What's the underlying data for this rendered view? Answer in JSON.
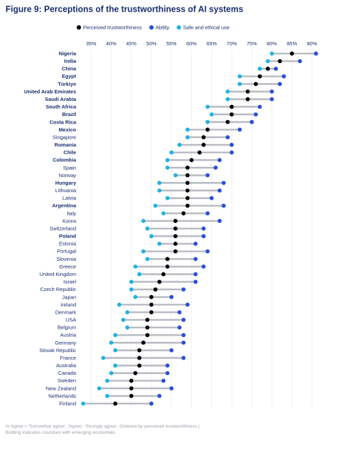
{
  "chart_data": {
    "type": "dot-range",
    "title": "Figure 9: Perceptions of the trustworthiness of AI systems",
    "categories": [
      "Nigeria",
      "India",
      "China",
      "Egypt",
      "Türkiye",
      "United Arab Emirates",
      "Saudi Arabia",
      "South Africa",
      "Brazil",
      "Costa Rica",
      "Mexico",
      "Singapore",
      "Romania",
      "Chile",
      "Colombia",
      "Spain",
      "Norway",
      "Hungary",
      "Lithuania",
      "Latvia",
      "Argentina",
      "Italy",
      "Korea",
      "Switzerland",
      "Poland",
      "Estonia",
      "Portugal",
      "Slovenia",
      "Greece",
      "United Kingdom",
      "Israel",
      "Czech Republic",
      "Japan",
      "Ireland",
      "Denmark",
      "USA",
      "Belgium",
      "Austria",
      "Germany",
      "Slovak Republic",
      "France",
      "Australia",
      "Canada",
      "Sweden",
      "New Zealand",
      "Netherlands",
      "Finland"
    ],
    "bold": [
      true,
      true,
      true,
      true,
      true,
      true,
      true,
      true,
      true,
      true,
      true,
      false,
      true,
      true,
      true,
      false,
      false,
      true,
      false,
      false,
      true,
      false,
      false,
      false,
      true,
      false,
      false,
      false,
      false,
      false,
      false,
      false,
      false,
      false,
      false,
      false,
      false,
      false,
      false,
      false,
      false,
      false,
      false,
      false,
      false,
      false,
      false
    ],
    "series": [
      {
        "name": "Perceived trustworthiness",
        "color": "#000000",
        "values": [
          85,
          82,
          79,
          77,
          76,
          74,
          74,
          70,
          70,
          69,
          64,
          63,
          63,
          62,
          60,
          59,
          59,
          59,
          59,
          59,
          59,
          58,
          56,
          56,
          56,
          56,
          56,
          54,
          54,
          53,
          52,
          51,
          50,
          50,
          50,
          49,
          49,
          49,
          48,
          47,
          47,
          47,
          46,
          45,
          45,
          45,
          41
        ]
      },
      {
        "name": "Ability",
        "color": "#2b4fd8",
        "values": [
          91,
          87,
          81,
          83,
          82,
          80,
          80,
          77,
          76,
          75,
          72,
          69,
          70,
          70,
          67,
          66,
          64,
          68,
          67,
          65,
          68,
          64,
          67,
          63,
          63,
          61,
          64,
          61,
          63,
          61,
          61,
          58,
          55,
          59,
          57,
          58,
          57,
          58,
          58,
          55,
          58,
          54,
          54,
          53,
          55,
          52,
          50
        ]
      },
      {
        "name": "Safe and ethical use",
        "color": "#1fb3e6",
        "values": [
          80,
          79,
          77,
          72,
          72,
          69,
          69,
          64,
          65,
          64,
          59,
          59,
          57,
          55,
          54,
          54,
          56,
          52,
          52,
          54,
          51,
          53,
          48,
          49,
          50,
          52,
          48,
          49,
          46,
          47,
          45,
          45,
          46,
          42,
          44,
          43,
          44,
          41,
          40,
          41,
          38,
          41,
          40,
          39,
          37,
          39,
          33
        ]
      }
    ],
    "xlim": [
      32,
      93
    ],
    "xticks": [
      {
        "value": 35,
        "label": "35%"
      },
      {
        "value": 40,
        "label": "40%"
      },
      {
        "value": 45,
        "label": "45%"
      },
      {
        "value": 50,
        "label": "50%"
      },
      {
        "value": 55,
        "label": "55%"
      },
      {
        "value": 60,
        "label": "60%"
      },
      {
        "value": 65,
        "label": "65%"
      },
      {
        "value": 70,
        "label": "70%"
      },
      {
        "value": 75,
        "label": "75%"
      },
      {
        "value": 80,
        "label": "80%"
      },
      {
        "value": 85,
        "label": "85%"
      },
      {
        "value": 90,
        "label": "90%"
      }
    ],
    "grid": true,
    "footnote": [
      "% Agree = 'Somewhat agree', 'Agree', 'Strongly agree'. Ordered by perceived trustworthiness |",
      "Bolding indicates countries with emerging economies."
    ]
  }
}
